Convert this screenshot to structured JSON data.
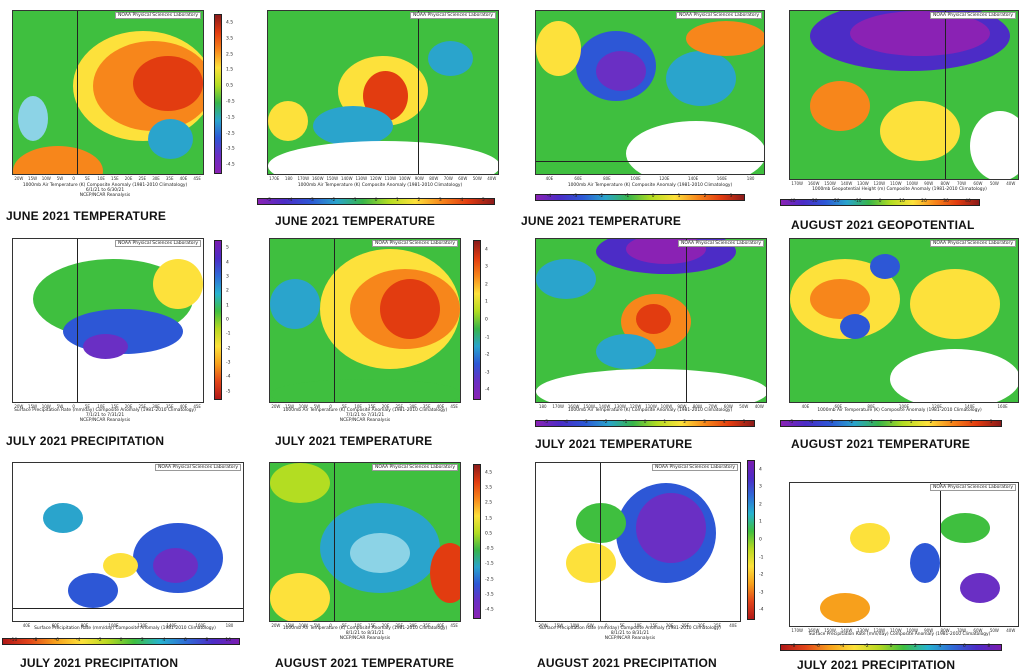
{
  "colors": {
    "deep_red": "#b8141a",
    "red": "#e23c10",
    "orange": "#f7861b",
    "yellow": "#fde13b",
    "lime": "#b3dd22",
    "green": "#44c23a",
    "cyan": "#2aa4cc",
    "blue": "#2d57d6",
    "purple": "#6a2fc4",
    "violet": "#8a22b4",
    "white": "#ffffff"
  },
  "source_label": "NOAA Physical Sciences Laboratory",
  "reanalysis_label": "NCEP/NCAR Reanalysis",
  "panels": [
    {
      "title": "JUNE 2021 TEMPERATURE",
      "caption": "1000mb Air Temperature (K) Composite Anomaly (1981-2010 Climatology)",
      "dates": "6/1/21 to 6/30/21",
      "lat_ticks": [
        "70N",
        "65N",
        "60N",
        "55N",
        "50N",
        "45N",
        "40N",
        "35N",
        "30N",
        "25N"
      ],
      "lon_ticks": [
        "20W",
        "15W",
        "10W",
        "5W",
        "0",
        "5E",
        "10E",
        "15E",
        "20E",
        "25E",
        "30E",
        "35E",
        "40E",
        "45E"
      ],
      "colorbar_labels": [
        "4.5",
        "3.5",
        "2.5",
        "1.5",
        "0.5",
        "-0.5",
        "-1.5",
        "-2.5",
        "-3.5",
        "-4.5"
      ]
    },
    {
      "title": "JUNE 2021 TEMPERATURE",
      "caption": "1000mb Air Temperature (K) Composite Anomaly (1981-2010 Climatology)",
      "dates": "6/1/21 to 6/30/21",
      "lat_ticks": [
        "70N",
        "60N",
        "50N",
        "40N",
        "30N",
        "20N",
        "10N"
      ],
      "lon_ticks": [
        "170E",
        "180",
        "170W",
        "160W",
        "150W",
        "140W",
        "130W",
        "120W",
        "110W",
        "100W",
        "90W",
        "80W",
        "70W",
        "60W",
        "50W",
        "40W"
      ],
      "colorbar_labels": [
        "-5",
        "-4",
        "-3",
        "-2",
        "-1",
        "0",
        "1",
        "2",
        "3",
        "4",
        "5"
      ]
    },
    {
      "title": "JUNE 2021 TEMPERATURE",
      "caption": "1000mb Air Temperature (K) Composite Anomaly (1981-2010 Climatology)",
      "dates": "6/1/21 to 6/30/21",
      "lat_ticks": [
        "70N",
        "60N",
        "50N",
        "40N",
        "30N",
        "20N",
        "10N",
        "EQ"
      ],
      "lon_ticks": [
        "40E",
        "60E",
        "80E",
        "100E",
        "120E",
        "140E",
        "160E",
        "180"
      ],
      "colorbar_labels": [
        "-4",
        "-3",
        "-2",
        "-1",
        "0",
        "1",
        "2",
        "3"
      ]
    },
    {
      "title": "AUGUST 2021 GEOPOTENTIAL",
      "caption": "1000mb Geopotential Height (m) Composite Anomaly (1981-2010 Climatology)",
      "dates": "8/1/21 to 8/31/21",
      "lat_ticks": [
        "80N",
        "70N",
        "60N",
        "50N",
        "40N",
        "30N",
        "20N",
        "10N"
      ],
      "lon_ticks": [
        "170W",
        "160W",
        "150W",
        "140W",
        "130W",
        "120W",
        "110W",
        "100W",
        "90W",
        "80W",
        "70W",
        "60W",
        "50W",
        "40W"
      ],
      "colorbar_labels": [
        "-40",
        "-30",
        "-20",
        "-10",
        "0",
        "10",
        "20",
        "30",
        "40"
      ]
    },
    {
      "title": "JULY 2021 PRECIPITATION",
      "caption": "Surface Precipitation Rate (mm/day) Composite Anomaly (1981-2010 Climatology)",
      "dates": "7/1/21 to 7/31/21",
      "lat_ticks": [
        "75N",
        "70N",
        "65N",
        "60N",
        "55N",
        "50N",
        "45N",
        "40N",
        "35N",
        "30N",
        "25N"
      ],
      "lon_ticks": [
        "20W",
        "15W",
        "10W",
        "5W",
        "0",
        "5E",
        "10E",
        "15E",
        "20E",
        "25E",
        "30E",
        "35E",
        "40E",
        "45E"
      ],
      "colorbar_labels": [
        "5",
        "4",
        "3",
        "2",
        "1",
        "0",
        "-1",
        "-2",
        "-3",
        "-4",
        "-5"
      ]
    },
    {
      "title": "JULY 2021 TEMPERATURE",
      "caption": "1000mb Air Temperature (K) Composite Anomaly (1981-2010 Climatology)",
      "dates": "7/1/21 to 7/31/21",
      "lat_ticks": [
        "70N",
        "65N",
        "60N",
        "55N",
        "50N",
        "45N",
        "40N",
        "35N",
        "30N"
      ],
      "lon_ticks": [
        "20W",
        "15W",
        "10W",
        "5W",
        "0",
        "5E",
        "10E",
        "15E",
        "20E",
        "25E",
        "30E",
        "35E",
        "40E",
        "45E"
      ],
      "colorbar_labels": [
        "4",
        "3",
        "2",
        "1",
        "0",
        "-1",
        "-2",
        "-3",
        "-4"
      ]
    },
    {
      "title": "JULY 2021 TEMPERATURE",
      "caption": "1000mb Air Temperature (K) Composite Anomaly (1981-2010 Climatology)",
      "dates": "7/1/21 to 7/31/21",
      "lat_ticks": [
        "80N",
        "70N",
        "60N",
        "50N",
        "40N",
        "30N",
        "20N",
        "10N"
      ],
      "lon_ticks": [
        "180",
        "170W",
        "160W",
        "150W",
        "140W",
        "130W",
        "120W",
        "110W",
        "100W",
        "90W",
        "80W",
        "70W",
        "60W",
        "50W",
        "40W"
      ],
      "colorbar_labels": [
        "-5",
        "-4",
        "-3",
        "-2",
        "-1",
        "0",
        "1",
        "2",
        "3",
        "4",
        "5"
      ]
    },
    {
      "title": "AUGUST 2021 TEMPERATURE",
      "caption": "1000mb Air Temperature (K) Composite Anomaly (1981-2010 Climatology)",
      "dates": "8/1/21 to 8/31/21",
      "lat_ticks": [
        "80N",
        "70N",
        "60N",
        "50N",
        "40N",
        "30N",
        "20N",
        "10N"
      ],
      "lon_ticks": [
        "40E",
        "60E",
        "80E",
        "100E",
        "120E",
        "140E",
        "160E"
      ],
      "colorbar_labels": [
        "-5",
        "-4",
        "-3",
        "-2",
        "-1",
        "0",
        "1",
        "2",
        "3",
        "4",
        "5"
      ]
    },
    {
      "title": "JULY 2021 PRECIPITATION",
      "caption": "Surface Precipitation Rate (mm/day) Composite Anomaly (1981-2010 Climatology)",
      "dates": "7/1/21 to 7/31/21",
      "lat_ticks": [
        "80N",
        "70N",
        "60N",
        "50N",
        "40N",
        "30N",
        "20N",
        "10N",
        "EQ",
        "5S"
      ],
      "lon_ticks": [
        "40E",
        "60E",
        "80E",
        "100E",
        "120E",
        "140E",
        "160E",
        "180"
      ],
      "colorbar_labels": [
        "-10",
        "-8",
        "-6",
        "-4",
        "-2",
        "0",
        "2",
        "4",
        "6",
        "8",
        "10"
      ]
    },
    {
      "title": "AUGUST 2021 TEMPERATURE",
      "caption": "1000mb Air Temperature (K) Composite Anomaly (1981-2010 Climatology)",
      "dates": "8/1/21 to 8/31/21",
      "lat_ticks": [
        "70N",
        "65N",
        "60N",
        "55N",
        "50N",
        "45N",
        "40N",
        "35N",
        "30N"
      ],
      "lon_ticks": [
        "20W",
        "15W",
        "10W",
        "5W",
        "0",
        "5E",
        "10E",
        "15E",
        "20E",
        "25E",
        "30E",
        "35E",
        "40E",
        "45E"
      ],
      "colorbar_labels": [
        "4.5",
        "3.5",
        "2.5",
        "1.5",
        "0.5",
        "-0.5",
        "-1.5",
        "-2.5",
        "-3.5",
        "-4.5"
      ]
    },
    {
      "title": "AUGUST 2021 PRECIPITATION",
      "caption": "Surface Precipitation Rate (mm/day) Composite Anomaly (1981-2010 Climatology)",
      "dates": "8/1/21 to 8/31/21",
      "lat_ticks": [
        "75N",
        "70N",
        "65N",
        "60N",
        "55N",
        "50N",
        "45N",
        "40N",
        "35N",
        "30N"
      ],
      "lon_ticks": [
        "20W",
        "15W",
        "10W",
        "5W",
        "0",
        "5E",
        "10E",
        "15E",
        "20E",
        "25E",
        "30E",
        "35E",
        "40E"
      ],
      "colorbar_labels": [
        "4",
        "3",
        "2",
        "1",
        "0",
        "-1",
        "-2",
        "-3",
        "-4"
      ]
    },
    {
      "title": "JULY 2021 PRECIPITATION",
      "caption": "Surface Precipitation Rate (mm/day) Composite Anomaly (1981-2010 Climatology)",
      "dates": "7/1/21 to 7/31/21",
      "lat_ticks": [
        "80N",
        "70N",
        "60N",
        "50N",
        "40N",
        "30N",
        "20N",
        "10N"
      ],
      "lon_ticks": [
        "170W",
        "160W",
        "150W",
        "140W",
        "130W",
        "120W",
        "110W",
        "100W",
        "90W",
        "80W",
        "70W",
        "60W",
        "50W",
        "40W"
      ],
      "colorbar_labels": [
        "-8",
        "-6",
        "-4",
        "-2",
        "0",
        "2",
        "4",
        "6",
        "8"
      ]
    }
  ]
}
